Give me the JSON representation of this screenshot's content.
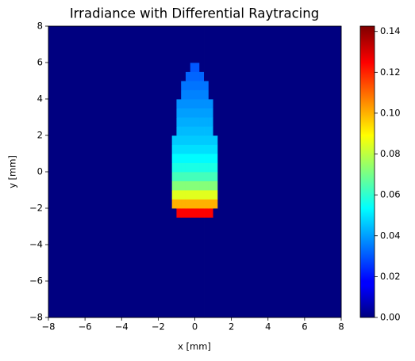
{
  "chart_data": {
    "type": "heatmap",
    "title": "Irradiance with Differential Raytracing",
    "xlabel": "x [mm]",
    "ylabel": "y [mm]",
    "xlim": [
      -8,
      8
    ],
    "ylim": [
      -8,
      8
    ],
    "xticks": [
      {
        "value": -8,
        "label": "−8"
      },
      {
        "value": -6,
        "label": "−6"
      },
      {
        "value": -4,
        "label": "−4"
      },
      {
        "value": -2,
        "label": "−2"
      },
      0,
      2,
      4,
      6,
      8
    ],
    "yticks": [
      {
        "value": -8,
        "label": "−8"
      },
      {
        "value": -6,
        "label": "−6"
      },
      {
        "value": -4,
        "label": "−4"
      },
      {
        "value": -2,
        "label": "−2"
      },
      0,
      2,
      4,
      6,
      8
    ],
    "xbins": [
      -8,
      -1.5,
      -1.25,
      -1,
      -0.75,
      -0.5,
      -0.25,
      0,
      0.25,
      0.5,
      0.75,
      1,
      1.25,
      1.5,
      8
    ],
    "ybins": [
      -8,
      -2.5,
      -2,
      -1.5,
      -1,
      -0.5,
      0,
      0.5,
      1,
      1.5,
      2,
      2.5,
      3,
      3.5,
      4,
      4.5,
      5,
      5.5,
      6,
      8
    ],
    "z": [
      [
        0,
        0,
        0,
        0,
        0,
        0,
        0,
        0,
        0,
        0,
        0,
        0,
        0,
        0
      ],
      [
        0,
        0,
        0,
        0.125,
        0.125,
        0.125,
        0.125,
        0.125,
        0.125,
        0.125,
        0.125,
        0,
        0,
        0
      ],
      [
        0,
        0,
        0.1,
        0.1,
        0.1,
        0.1,
        0.1,
        0.1,
        0.1,
        0.1,
        0.1,
        0.1,
        0,
        0
      ],
      [
        0,
        0,
        0.085,
        0.085,
        0.085,
        0.085,
        0.085,
        0.085,
        0.085,
        0.085,
        0.085,
        0.085,
        0,
        0
      ],
      [
        0,
        0,
        0.072,
        0.072,
        0.072,
        0.072,
        0.072,
        0.072,
        0.072,
        0.072,
        0.072,
        0.072,
        0,
        0
      ],
      [
        0,
        0,
        0.063,
        0.063,
        0.063,
        0.063,
        0.063,
        0.063,
        0.063,
        0.063,
        0.063,
        0.063,
        0,
        0
      ],
      [
        0,
        0,
        0.057,
        0.057,
        0.057,
        0.057,
        0.057,
        0.057,
        0.057,
        0.057,
        0.057,
        0.057,
        0,
        0
      ],
      [
        0,
        0,
        0.053,
        0.053,
        0.053,
        0.053,
        0.053,
        0.053,
        0.053,
        0.053,
        0.053,
        0.053,
        0,
        0
      ],
      [
        0,
        0,
        0.049,
        0.049,
        0.049,
        0.049,
        0.049,
        0.049,
        0.049,
        0.049,
        0.049,
        0.049,
        0,
        0
      ],
      [
        0,
        0,
        0.046,
        0.046,
        0.046,
        0.046,
        0.046,
        0.046,
        0.046,
        0.046,
        0.046,
        0.046,
        0,
        0
      ],
      [
        0,
        0,
        0,
        0.044,
        0.044,
        0.044,
        0.044,
        0.044,
        0.044,
        0.044,
        0.044,
        0,
        0,
        0
      ],
      [
        0,
        0,
        0,
        0.042,
        0.042,
        0.042,
        0.042,
        0.042,
        0.042,
        0.042,
        0.042,
        0,
        0,
        0
      ],
      [
        0,
        0,
        0,
        0.04,
        0.04,
        0.04,
        0.04,
        0.04,
        0.04,
        0.04,
        0.04,
        0,
        0,
        0
      ],
      [
        0,
        0,
        0,
        0.038,
        0.038,
        0.038,
        0.038,
        0.038,
        0.038,
        0.038,
        0.038,
        0,
        0,
        0
      ],
      [
        0,
        0,
        0,
        0,
        0.036,
        0.036,
        0.036,
        0.036,
        0.036,
        0.036,
        0,
        0,
        0,
        0
      ],
      [
        0,
        0,
        0,
        0,
        0.034,
        0.034,
        0.034,
        0.034,
        0.034,
        0.034,
        0,
        0,
        0,
        0
      ],
      [
        0,
        0,
        0,
        0,
        0,
        0.032,
        0.032,
        0.032,
        0.032,
        0,
        0,
        0,
        0,
        0
      ],
      [
        0,
        0,
        0,
        0,
        0,
        0,
        0.03,
        0.03,
        0,
        0,
        0,
        0,
        0,
        0
      ],
      [
        0,
        0,
        0,
        0,
        0,
        0,
        0,
        0,
        0,
        0,
        0,
        0,
        0,
        0
      ]
    ],
    "colormap": "jet",
    "clim": [
      0,
      0.1426
    ],
    "cticks": [
      {
        "value": 0,
        "label": "0.00"
      },
      {
        "value": 0.02,
        "label": "0.02"
      },
      {
        "value": 0.04,
        "label": "0.04"
      },
      {
        "value": 0.06,
        "label": "0.06"
      },
      {
        "value": 0.08,
        "label": "0.08"
      },
      {
        "value": 0.1,
        "label": "0.10"
      },
      {
        "value": 0.12,
        "label": "0.12"
      },
      {
        "value": 0.14,
        "label": "0.14"
      }
    ]
  }
}
